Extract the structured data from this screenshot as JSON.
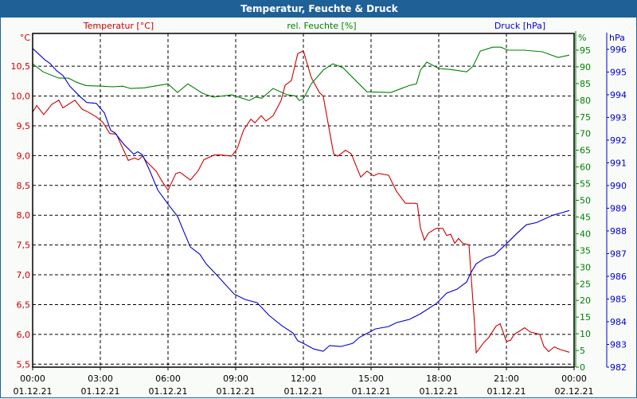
{
  "title": "Temperatur, Feuchte & Druck",
  "colors": {
    "temperature": "#cc0000",
    "humidity": "#008000",
    "pressure": "#0000cc",
    "titlebar": "#1f6197"
  },
  "chart_data": {
    "type": "line",
    "title": "Temperatur, Feuchte & Druck",
    "x_unit": "hours since 01.12.21 00:00",
    "xlim": [
      0,
      24
    ],
    "x_ticks": [
      {
        "h": 0,
        "time": "00:00",
        "date": "01.12.21"
      },
      {
        "h": 3,
        "time": "03:00",
        "date": "01.12.21"
      },
      {
        "h": 6,
        "time": "06:00",
        "date": "01.12.21"
      },
      {
        "h": 9,
        "time": "09:00",
        "date": "01.12.21"
      },
      {
        "h": 12,
        "time": "12:00",
        "date": "01.12.21"
      },
      {
        "h": 15,
        "time": "15:00",
        "date": "01.12.21"
      },
      {
        "h": 18,
        "time": "18:00",
        "date": "01.12.21"
      },
      {
        "h": 21,
        "time": "21:00",
        "date": "01.12.21"
      },
      {
        "h": 24,
        "time": "00:00",
        "date": "02.12.21"
      }
    ],
    "axes": {
      "temperature": {
        "label": "Temperatur [°C]",
        "unit": "°C",
        "ylim": [
          5.45,
          11.05
        ],
        "ticks": [
          "5,5",
          "6,0",
          "6,5",
          "7,0",
          "7,5",
          "8,0",
          "8,5",
          "9,0",
          "9,5",
          "10,0",
          "10,5"
        ],
        "tick_values": [
          5.5,
          6,
          6.5,
          7,
          7.5,
          8,
          8.5,
          9,
          9.5,
          10,
          10.5
        ]
      },
      "humidity": {
        "label": "rel. Feuchte [%]",
        "unit": "%",
        "ylim": [
          0,
          100
        ],
        "ticks": [
          "0",
          "5",
          "10",
          "15",
          "20",
          "25",
          "30",
          "35",
          "40",
          "45",
          "50",
          "55",
          "60",
          "65",
          "70",
          "75",
          "80",
          "85",
          "90",
          "95"
        ]
      },
      "pressure": {
        "label": "Druck [hPa]",
        "unit": "hPa",
        "ylim": [
          982,
          996.7
        ],
        "ticks": [
          "982",
          "983",
          "984",
          "985",
          "986",
          "987",
          "988",
          "989",
          "990",
          "991",
          "992",
          "993",
          "994",
          "995",
          "996"
        ]
      }
    },
    "grid": true,
    "series": [
      {
        "name": "Temperatur [°C]",
        "axis": "temperature",
        "color": "#cc0000",
        "points": [
          [
            0,
            9.73
          ],
          [
            0.18,
            9.84
          ],
          [
            0.49,
            9.69
          ],
          [
            0.85,
            9.86
          ],
          [
            1.16,
            9.93
          ],
          [
            1.34,
            9.8
          ],
          [
            1.87,
            9.93
          ],
          [
            2.19,
            9.78
          ],
          [
            2.47,
            9.73
          ],
          [
            2.82,
            9.65
          ],
          [
            3.11,
            9.56
          ],
          [
            3.42,
            9.37
          ],
          [
            3.71,
            9.36
          ],
          [
            3.95,
            9.16
          ],
          [
            4.24,
            8.92
          ],
          [
            4.52,
            8.96
          ],
          [
            4.69,
            8.93
          ],
          [
            4.87,
            8.99
          ],
          [
            5.05,
            8.9
          ],
          [
            5.47,
            8.74
          ],
          [
            5.75,
            8.56
          ],
          [
            6.0,
            8.42
          ],
          [
            6.35,
            8.7
          ],
          [
            6.53,
            8.72
          ],
          [
            6.99,
            8.59
          ],
          [
            7.34,
            8.75
          ],
          [
            7.59,
            8.93
          ],
          [
            8.05,
            9.01
          ],
          [
            8.36,
            9.01
          ],
          [
            8.82,
            8.99
          ],
          [
            9.07,
            9.12
          ],
          [
            9.35,
            9.43
          ],
          [
            9.67,
            9.61
          ],
          [
            9.85,
            9.55
          ],
          [
            10.13,
            9.67
          ],
          [
            10.34,
            9.58
          ],
          [
            10.66,
            9.67
          ],
          [
            11.01,
            9.92
          ],
          [
            11.19,
            10.18
          ],
          [
            11.47,
            10.26
          ],
          [
            11.75,
            10.71
          ],
          [
            12.0,
            10.76
          ],
          [
            12.35,
            10.31
          ],
          [
            12.71,
            10.06
          ],
          [
            12.88,
            10.0
          ],
          [
            13.34,
            9.03
          ],
          [
            13.52,
            8.99
          ],
          [
            13.87,
            9.09
          ],
          [
            14.12,
            9.03
          ],
          [
            14.54,
            8.64
          ],
          [
            14.82,
            8.74
          ],
          [
            15.11,
            8.66
          ],
          [
            15.35,
            8.7
          ],
          [
            15.78,
            8.67
          ],
          [
            16.13,
            8.4
          ],
          [
            16.52,
            8.2
          ],
          [
            16.94,
            8.2
          ],
          [
            17.05,
            8.19
          ],
          [
            17.19,
            7.79
          ],
          [
            17.36,
            7.58
          ],
          [
            17.54,
            7.7
          ],
          [
            17.89,
            7.78
          ],
          [
            18.18,
            7.78
          ],
          [
            18.35,
            7.66
          ],
          [
            18.53,
            7.68
          ],
          [
            18.71,
            7.53
          ],
          [
            18.88,
            7.61
          ],
          [
            19.06,
            7.53
          ],
          [
            19.34,
            7.5
          ],
          [
            19.41,
            7.13
          ],
          [
            19.59,
            6.15
          ],
          [
            19.66,
            5.69
          ],
          [
            20.01,
            5.87
          ],
          [
            20.22,
            5.95
          ],
          [
            20.54,
            6.14
          ],
          [
            20.72,
            6.18
          ],
          [
            21.0,
            5.88
          ],
          [
            21.18,
            5.9
          ],
          [
            21.35,
            6.0
          ],
          [
            21.81,
            6.11
          ],
          [
            22.06,
            6.04
          ],
          [
            22.48,
            6.0
          ],
          [
            22.66,
            5.8
          ],
          [
            22.87,
            5.71
          ],
          [
            23.12,
            5.79
          ],
          [
            23.36,
            5.75
          ],
          [
            23.79,
            5.7
          ]
        ]
      },
      {
        "name": "rel. Feuchte [%]",
        "axis": "humidity",
        "color": "#008000",
        "points": [
          [
            0,
            90.9
          ],
          [
            0.46,
            88.5
          ],
          [
            1.16,
            86.6
          ],
          [
            1.59,
            86.6
          ],
          [
            1.94,
            85.4
          ],
          [
            2.36,
            84.4
          ],
          [
            3.07,
            84.2
          ],
          [
            3.53,
            84.0
          ],
          [
            3.99,
            84.2
          ],
          [
            4.34,
            83.5
          ],
          [
            4.94,
            83.7
          ],
          [
            5.54,
            84.4
          ],
          [
            6.0,
            84.9
          ],
          [
            6.42,
            82.3
          ],
          [
            6.88,
            84.9
          ],
          [
            7.52,
            82.1
          ],
          [
            8.01,
            80.9
          ],
          [
            8.82,
            81.6
          ],
          [
            9.6,
            79.9
          ],
          [
            9.88,
            80.9
          ],
          [
            10.16,
            80.6
          ],
          [
            10.66,
            83.5
          ],
          [
            11.29,
            81.6
          ],
          [
            11.65,
            81.3
          ],
          [
            11.82,
            79.9
          ],
          [
            12.0,
            80.4
          ],
          [
            12.35,
            84.9
          ],
          [
            12.88,
            89.0
          ],
          [
            13.31,
            90.9
          ],
          [
            13.76,
            89.7
          ],
          [
            14.36,
            85.6
          ],
          [
            14.82,
            82.5
          ],
          [
            15.88,
            82.3
          ],
          [
            16.69,
            84.4
          ],
          [
            17.01,
            84.9
          ],
          [
            17.19,
            89.0
          ],
          [
            17.47,
            91.4
          ],
          [
            18.0,
            89.5
          ],
          [
            18.53,
            89.2
          ],
          [
            19.24,
            88.5
          ],
          [
            19.52,
            90.2
          ],
          [
            19.84,
            94.7
          ],
          [
            20.4,
            95.9
          ],
          [
            20.75,
            95.9
          ],
          [
            21.07,
            95.0
          ],
          [
            21.78,
            95.0
          ],
          [
            22.59,
            94.5
          ],
          [
            23.29,
            92.8
          ],
          [
            23.79,
            93.5
          ]
        ]
      },
      {
        "name": "Druck [hPa]",
        "axis": "pressure",
        "color": "#0000cc",
        "points": [
          [
            0,
            996.04
          ],
          [
            0.53,
            995.55
          ],
          [
            0.78,
            995.37
          ],
          [
            1.06,
            995.06
          ],
          [
            1.34,
            994.85
          ],
          [
            1.66,
            994.36
          ],
          [
            2.12,
            993.9
          ],
          [
            2.4,
            993.66
          ],
          [
            2.82,
            993.62
          ],
          [
            3.18,
            993.2
          ],
          [
            3.46,
            992.43
          ],
          [
            3.64,
            992.33
          ],
          [
            4.06,
            991.8
          ],
          [
            4.48,
            991.38
          ],
          [
            4.66,
            991.49
          ],
          [
            4.87,
            991.35
          ],
          [
            5.19,
            990.65
          ],
          [
            5.54,
            989.81
          ],
          [
            6.0,
            989.18
          ],
          [
            6.42,
            988.65
          ],
          [
            6.71,
            987.95
          ],
          [
            6.99,
            987.29
          ],
          [
            7.41,
            986.97
          ],
          [
            7.69,
            986.55
          ],
          [
            8.12,
            986.1
          ],
          [
            8.93,
            985.22
          ],
          [
            9.42,
            984.98
          ],
          [
            9.95,
            984.84
          ],
          [
            10.48,
            984.28
          ],
          [
            11.05,
            983.82
          ],
          [
            11.54,
            983.5
          ],
          [
            11.75,
            983.16
          ],
          [
            12.0,
            983.05
          ],
          [
            12.46,
            982.8
          ],
          [
            12.88,
            982.7
          ],
          [
            13.16,
            982.95
          ],
          [
            13.66,
            982.91
          ],
          [
            14.19,
            983.05
          ],
          [
            14.47,
            983.3
          ],
          [
            15.18,
            983.68
          ],
          [
            15.78,
            983.79
          ],
          [
            16.13,
            983.96
          ],
          [
            16.69,
            984.1
          ],
          [
            17.19,
            984.35
          ],
          [
            17.89,
            984.8
          ],
          [
            18.35,
            985.26
          ],
          [
            18.81,
            985.43
          ],
          [
            19.24,
            985.75
          ],
          [
            19.41,
            986.13
          ],
          [
            19.66,
            986.55
          ],
          [
            20.05,
            986.8
          ],
          [
            20.47,
            986.94
          ],
          [
            21.0,
            987.43
          ],
          [
            21.42,
            987.85
          ],
          [
            21.88,
            988.27
          ],
          [
            22.34,
            988.37
          ],
          [
            23.05,
            988.69
          ],
          [
            23.4,
            988.79
          ],
          [
            23.79,
            988.9
          ]
        ]
      }
    ]
  }
}
